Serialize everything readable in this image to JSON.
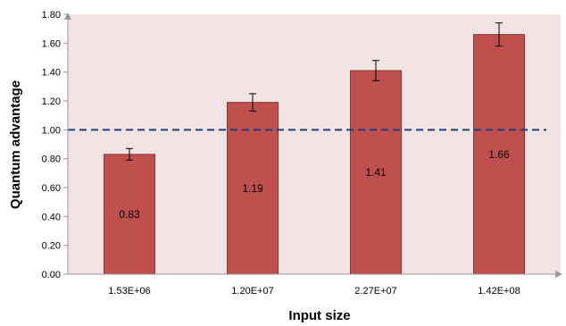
{
  "chart_data": {
    "type": "bar",
    "categories": [
      "1.53E+06",
      "1.20E+07",
      "2.27E+07",
      "1.42E+08"
    ],
    "values": [
      0.83,
      1.19,
      1.41,
      1.66
    ],
    "value_labels": [
      "0.83",
      "1.19",
      "1.41",
      "1.66"
    ],
    "error_low": [
      0.79,
      1.13,
      1.34,
      1.58
    ],
    "error_high": [
      0.87,
      1.25,
      1.48,
      1.74
    ],
    "reference_line": 1.0,
    "xlabel": "Input size",
    "ylabel": "Quantum advantage",
    "ylim": [
      0,
      1.8
    ],
    "yticks": [
      "0.00",
      "0.20",
      "0.40",
      "0.60",
      "0.80",
      "1.00",
      "1.20",
      "1.40",
      "1.60",
      "1.80"
    ],
    "grid": false,
    "legend": "none",
    "colors": {
      "bar_fill": "#c0504d",
      "bar_stroke": "#8c3836",
      "plot_background": "#f2e4e4",
      "reference_line": "#1f3d7a",
      "axis": "#999999"
    }
  }
}
